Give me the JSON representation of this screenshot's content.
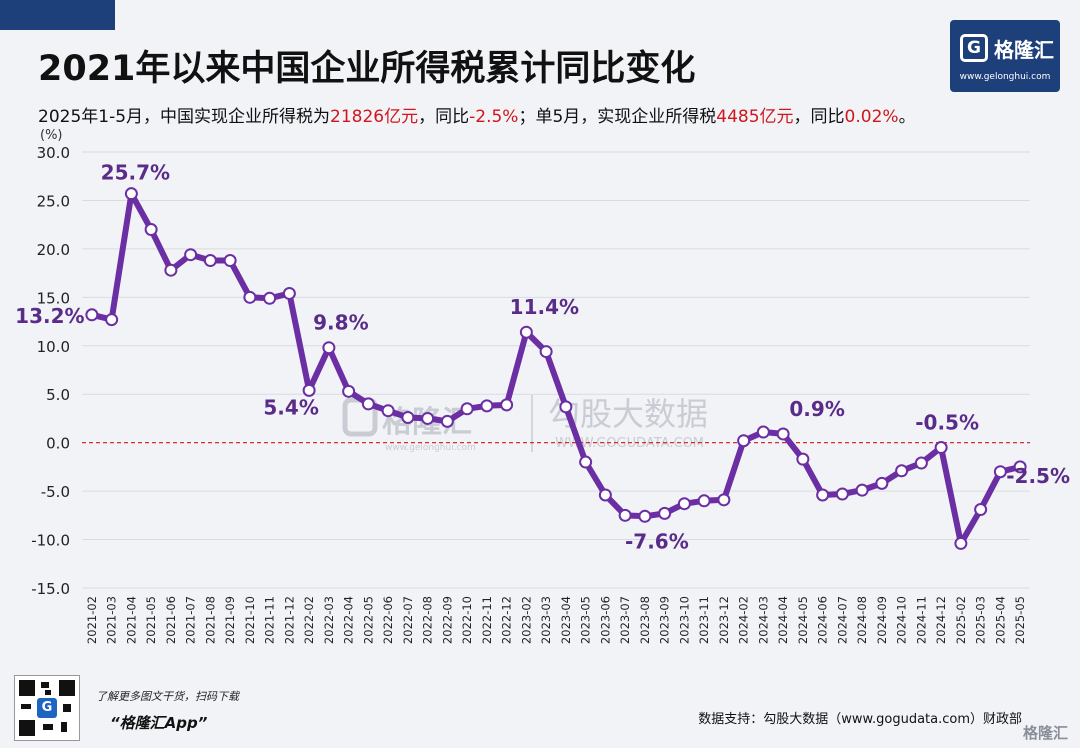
{
  "title": "2021年以来中国企业所得税累计同比变化",
  "subtitle": {
    "p1": "2025年1-5月，中国实现企业所得税为",
    "v1": "21826亿元",
    "p2": "，同比",
    "v2": "-2.5%",
    "p3": "；单5月，实现企业所得税",
    "v3": "4485亿元",
    "p4": "，同比",
    "v4": "0.02%",
    "p5": "。"
  },
  "logo": {
    "mark": "G",
    "name": "格隆汇",
    "url": "www.gelonghui.com"
  },
  "watermark": {
    "center_left": "格隆汇",
    "center_left_url": "www.gelonghui.com",
    "center_right": "勾股大数据",
    "center_right_url": "WWW.GOGUDATA.COM",
    "bottom_right": "格隆汇"
  },
  "promo": {
    "line1": "了解更多图文干货，扫码下载",
    "line2": "“格隆汇App”",
    "qr_icon": "G"
  },
  "source": "数据支持：勾股大数据（www.gogudata.com）财政部",
  "colors": {
    "line": "#6b2fa3",
    "marker_fill": "#ffffff",
    "zero_line": "#d0161b",
    "title_bar": "#1d3f7a",
    "highlight": "#d0161b"
  },
  "chart_data": {
    "type": "line",
    "ylabel": "(%)",
    "ylim": [
      -15,
      30
    ],
    "yticks": [
      "30.0",
      "25.0",
      "20.0",
      "15.0",
      "10.0",
      "5.0",
      "0.0",
      "-5.0",
      "-10.0",
      "-15.0"
    ],
    "grid": true,
    "zero_line": true,
    "categories": [
      "2021-02",
      "2021-03",
      "2021-04",
      "2021-05",
      "2021-06",
      "2021-07",
      "2021-08",
      "2021-09",
      "2021-10",
      "2021-11",
      "2021-12",
      "2022-02",
      "2022-03",
      "2022-04",
      "2022-05",
      "2022-06",
      "2022-07",
      "2022-08",
      "2022-09",
      "2022-10",
      "2022-11",
      "2022-12",
      "2023-02",
      "2023-03",
      "2023-04",
      "2023-05",
      "2023-06",
      "2023-07",
      "2023-08",
      "2023-09",
      "2023-10",
      "2023-11",
      "2023-12",
      "2024-02",
      "2024-03",
      "2024-04",
      "2024-05",
      "2024-06",
      "2024-07",
      "2024-08",
      "2024-09",
      "2024-10",
      "2024-11",
      "2024-12",
      "2025-02",
      "2025-03",
      "2025-04",
      "2025-05"
    ],
    "series": [
      {
        "values": [
          13.2,
          12.7,
          25.7,
          22.0,
          17.8,
          19.4,
          18.8,
          18.8,
          15.0,
          14.9,
          15.4,
          5.4,
          9.8,
          5.3,
          4.0,
          3.3,
          2.6,
          2.5,
          2.2,
          3.5,
          3.8,
          3.9,
          11.4,
          9.4,
          3.7,
          -2.0,
          -5.4,
          -7.5,
          -7.6,
          -7.3,
          -6.3,
          -6.0,
          -5.9,
          0.2,
          1.1,
          0.9,
          -1.7,
          -5.4,
          -5.3,
          -4.9,
          -4.2,
          -2.9,
          -2.1,
          -0.5,
          -10.4,
          -6.9,
          -3.0,
          -2.5
        ]
      }
    ],
    "annotations": [
      {
        "index": 0,
        "text": "13.2%"
      },
      {
        "index": 2,
        "text": "25.7%"
      },
      {
        "index": 11,
        "text": "5.4%"
      },
      {
        "index": 12,
        "text": "9.8%"
      },
      {
        "index": 22,
        "text": "11.4%"
      },
      {
        "index": 28,
        "text": "-7.6%"
      },
      {
        "index": 35,
        "text": "0.9%"
      },
      {
        "index": 43,
        "text": "-0.5%"
      },
      {
        "index": 47,
        "text": "-2.5%"
      }
    ]
  }
}
